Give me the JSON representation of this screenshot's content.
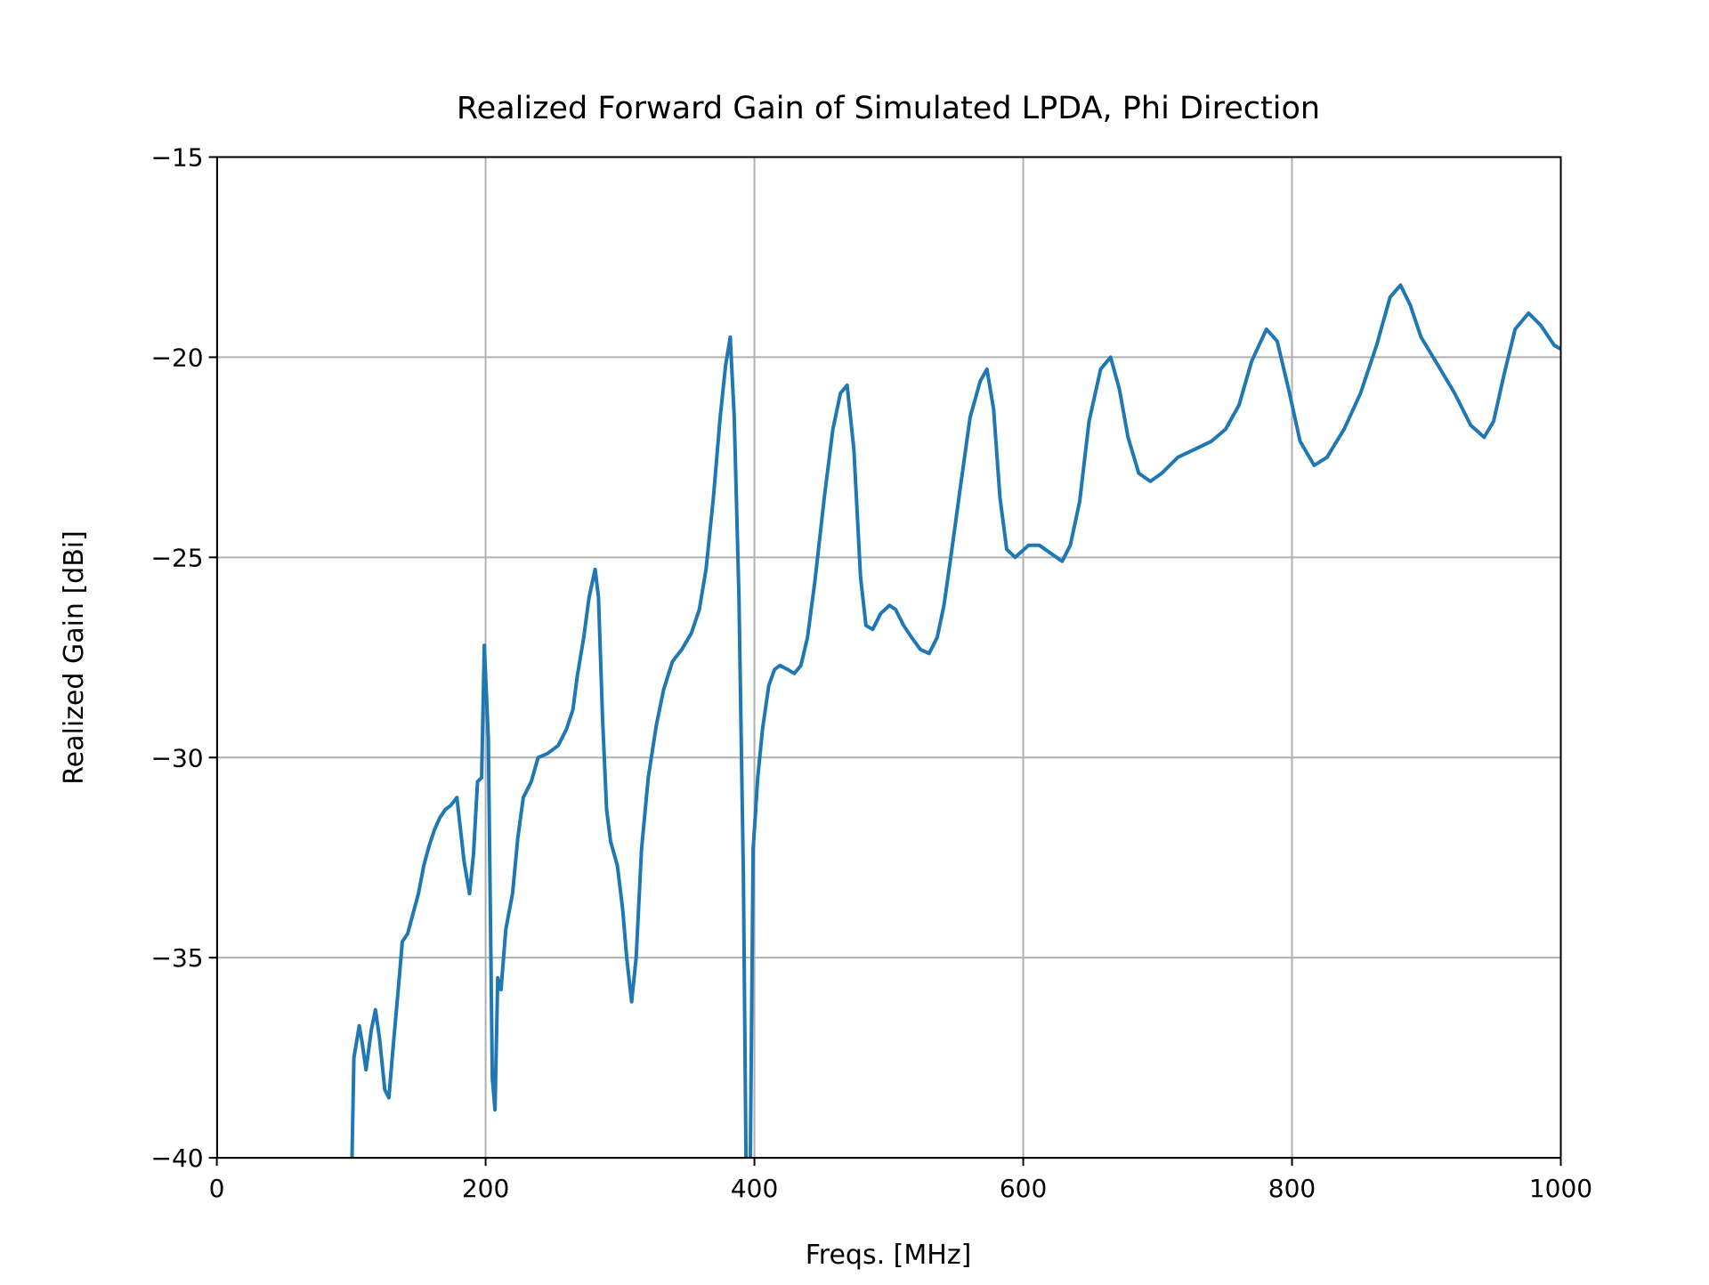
{
  "chart_data": {
    "type": "line",
    "title": "Realized Forward Gain of Simulated LPDA, Phi Direction",
    "xlabel": "Freqs. [MHz]",
    "ylabel": "Realized Gain [dBi]",
    "xlim": [
      0,
      1000
    ],
    "ylim": [
      -40,
      -15
    ],
    "xticks": [
      0,
      200,
      400,
      600,
      800,
      1000
    ],
    "yticks": [
      {
        "value": -40,
        "label": "−40"
      },
      {
        "value": -35,
        "label": "−35"
      },
      {
        "value": -30,
        "label": "−30"
      },
      {
        "value": -25,
        "label": "−25"
      },
      {
        "value": -20,
        "label": "−20"
      },
      {
        "value": -15,
        "label": "−15"
      }
    ],
    "grid": true,
    "series": [
      {
        "color": "#1f77b4",
        "x": [
          100,
          102,
          106,
          108,
          111,
          115,
          118,
          121,
          125,
          128,
          131,
          135,
          138,
          142,
          146,
          150,
          154,
          158,
          162,
          166,
          170,
          174,
          178.6,
          184,
          188,
          191,
          194,
          197,
          199,
          202,
          205,
          207,
          209,
          211.5,
          215,
          220,
          224,
          228,
          234,
          239,
          246,
          254,
          260,
          265,
          268,
          273,
          277,
          281.5,
          284,
          287,
          290,
          293,
          298,
          302,
          305,
          308.6,
          312,
          316,
          321,
          327,
          332.5,
          339,
          346,
          353,
          359,
          364,
          369.5,
          374.5,
          378.6,
          382,
          385,
          388.5,
          391.8,
          394,
          396.7,
          399,
          402.5,
          406,
          410.7,
          415,
          419,
          424.7,
          429.6,
          434.6,
          439.5,
          445,
          452,
          458.4,
          464,
          469,
          474,
          479,
          483,
          488,
          494,
          500.4,
          505,
          511,
          517,
          523.5,
          530,
          536,
          541,
          546.5,
          553,
          560.5,
          568,
          573,
          578,
          582.7,
          587.7,
          594,
          604,
          612,
          620.6,
          629,
          635,
          642,
          649,
          657.6,
          665,
          671.6,
          678,
          686,
          694.6,
          703,
          715,
          727.6,
          740,
          750.6,
          760.5,
          770,
          781,
          789,
          797.5,
          806,
          816.5,
          826,
          838.7,
          851,
          863,
          873,
          880.7,
          888,
          896,
          908.6,
          921,
          933,
          943,
          950,
          958,
          966,
          976,
          985,
          995,
          1000
        ],
        "values": [
          -41,
          -37.5,
          -36.7,
          -37.1,
          -37.8,
          -36.8,
          -36.3,
          -37.0,
          -38.3,
          -38.5,
          -37.3,
          -35.8,
          -34.6,
          -34.4,
          -33.9,
          -33.4,
          -32.7,
          -32.2,
          -31.8,
          -31.5,
          -31.3,
          -31.2,
          -31.0,
          -32.6,
          -33.4,
          -32.4,
          -30.6,
          -30.5,
          -27.2,
          -29.5,
          -38.0,
          -38.8,
          -35.5,
          -35.8,
          -34.3,
          -33.4,
          -32.0,
          -31.0,
          -30.6,
          -30.0,
          -29.9,
          -29.7,
          -29.3,
          -28.8,
          -28.0,
          -27.0,
          -26.0,
          -25.3,
          -26.0,
          -29.0,
          -31.3,
          -32.1,
          -32.7,
          -33.8,
          -35.0,
          -36.1,
          -35.0,
          -32.3,
          -30.5,
          -29.2,
          -28.3,
          -27.6,
          -27.3,
          -26.9,
          -26.3,
          -25.3,
          -23.5,
          -21.5,
          -20.2,
          -19.5,
          -21.5,
          -26.0,
          -33.0,
          -41,
          -41,
          -32.3,
          -30.5,
          -29.3,
          -28.2,
          -27.8,
          -27.7,
          -27.8,
          -27.9,
          -27.7,
          -27.0,
          -25.6,
          -23.5,
          -21.8,
          -20.9,
          -20.7,
          -22.3,
          -25.5,
          -26.7,
          -26.8,
          -26.4,
          -26.2,
          -26.3,
          -26.7,
          -27.0,
          -27.3,
          -27.4,
          -27.0,
          -26.2,
          -24.9,
          -23.3,
          -21.5,
          -20.6,
          -20.3,
          -21.3,
          -23.5,
          -24.8,
          -25.0,
          -24.7,
          -24.7,
          -24.9,
          -25.1,
          -24.7,
          -23.6,
          -21.6,
          -20.3,
          -20.0,
          -20.8,
          -22.0,
          -22.9,
          -23.1,
          -22.9,
          -22.5,
          -22.3,
          -22.1,
          -21.8,
          -21.2,
          -20.1,
          -19.3,
          -19.6,
          -20.8,
          -22.1,
          -22.7,
          -22.5,
          -21.8,
          -20.9,
          -19.7,
          -18.5,
          -18.2,
          -18.7,
          -19.5,
          -20.2,
          -20.9,
          -21.7,
          -22.0,
          -21.6,
          -20.4,
          -19.3,
          -18.9,
          -19.2,
          -19.7,
          -19.8
        ]
      }
    ]
  }
}
